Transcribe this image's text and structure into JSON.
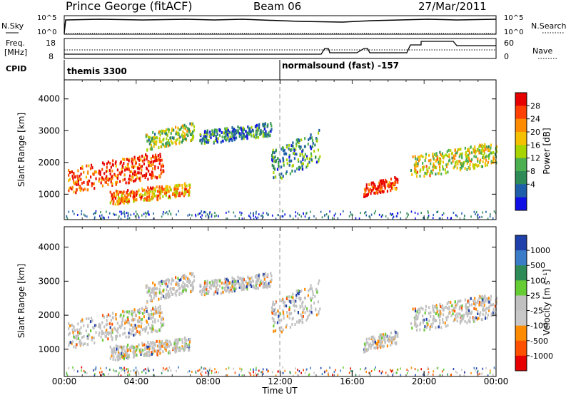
{
  "header": {
    "station": "Prince George (fitACF)",
    "beam": "Beam 06",
    "date": "27/Mar/2011"
  },
  "summary": {
    "nsky_label": "N.Sky",
    "nsky_ticks": [
      "10^5",
      "10^0"
    ],
    "nsearch_label": "N.Search",
    "nsearch_ticks": [
      "10^5",
      "10^0"
    ],
    "freq_label": "Freq.",
    "freq_unit": "[MHz]",
    "freq_ticks": [
      "18",
      "8"
    ],
    "nave_label": "Nave",
    "nave_ticks": [
      "60",
      "0"
    ],
    "cpid_label": "CPID",
    "cpid_segments": [
      {
        "label": "themis 3300",
        "start_hr": 0
      },
      {
        "label": "normalsound (fast) -157",
        "start_hr": 12
      }
    ]
  },
  "chart_data": [
    {
      "type": "heatmap",
      "panel": "power",
      "x_range_hr": [
        0,
        24
      ],
      "ylabel": "Slant Range [km]",
      "yticks": [
        "4000",
        "3000",
        "2000",
        "1000"
      ],
      "yticks_val": [
        4000,
        3000,
        2000,
        1000
      ],
      "ylim": [
        200,
        4600
      ],
      "colorbar_label": "Power [dB]",
      "colorbar_ticks": [
        "28",
        "24",
        "20",
        "16",
        "12",
        "8",
        "4"
      ],
      "colorbar_colors": [
        "#e60000",
        "#ff4000",
        "#ff8c00",
        "#f5c000",
        "#a8d400",
        "#4caf50",
        "#2e8b57",
        "#1f5faa",
        "#1010e6"
      ],
      "echo_bands": [
        {
          "t0": 0.2,
          "t1": 5.5,
          "r0": 1050,
          "r1": 2400,
          "level": 0.85
        },
        {
          "t0": 2.5,
          "t1": 7.0,
          "r0": 700,
          "r1": 1400,
          "level": 0.7
        },
        {
          "t0": 4.5,
          "t1": 7.2,
          "r0": 2400,
          "r1": 3300,
          "level": 0.45
        },
        {
          "t0": 7.5,
          "t1": 11.5,
          "r0": 2600,
          "r1": 3300,
          "level": 0.25
        },
        {
          "t0": 11.5,
          "t1": 14.2,
          "r0": 1400,
          "r1": 3100,
          "level": 0.3
        },
        {
          "t0": 16.6,
          "t1": 18.5,
          "r0": 950,
          "r1": 1600,
          "level": 0.9
        },
        {
          "t0": 19.2,
          "t1": 24,
          "r0": 1500,
          "r1": 2700,
          "level": 0.55
        }
      ]
    },
    {
      "type": "heatmap",
      "panel": "velocity",
      "x_range_hr": [
        0,
        24
      ],
      "ylabel": "Slant Range [km]",
      "yticks": [
        "4000",
        "3000",
        "2000",
        "1000"
      ],
      "yticks_val": [
        4000,
        3000,
        2000,
        1000
      ],
      "ylim": [
        200,
        4600
      ],
      "colorbar_label": "Velocity [m s⁻¹]",
      "colorbar_ticks": [
        "1000",
        "500",
        "100",
        "25",
        "-25",
        "-100",
        "-500",
        "-1000"
      ],
      "colorbar_colors": [
        "#1f3faa",
        "#3b7cc8",
        "#2e8b57",
        "#66cc33",
        "#c0c0c0",
        "#c8c8c8",
        "#ff8c00",
        "#ff5000",
        "#e60000"
      ],
      "xlabel": "Time UT",
      "xticks": [
        "00:00",
        "04:00",
        "08:00",
        "12:00",
        "16:00",
        "20:00",
        "00:00"
      ],
      "xticks_val": [
        0,
        4,
        8,
        12,
        16,
        20,
        24
      ]
    }
  ]
}
